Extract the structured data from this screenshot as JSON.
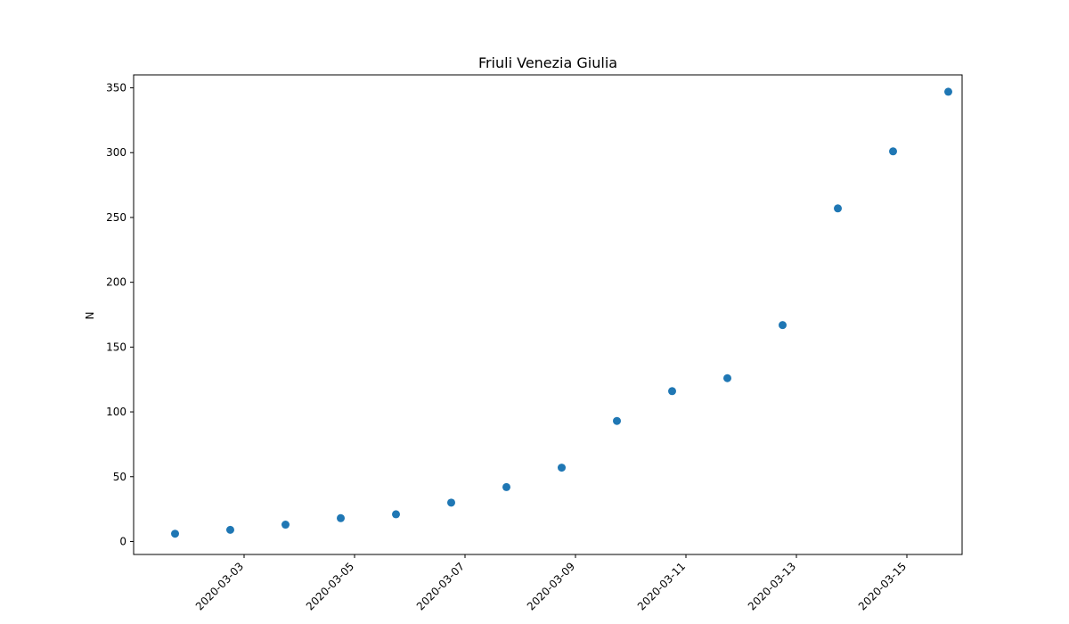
{
  "chart_data": {
    "type": "scatter",
    "title": "Friuli Venezia Giulia",
    "xlabel": "",
    "ylabel": "N",
    "ylim": [
      -10,
      360
    ],
    "xlim": [
      "2020-03-01",
      "2020-03-16"
    ],
    "x_ticks": [
      "2020-03-03",
      "2020-03-05",
      "2020-03-07",
      "2020-03-09",
      "2020-03-11",
      "2020-03-13",
      "2020-03-15"
    ],
    "y_ticks": [
      0,
      50,
      100,
      150,
      200,
      250,
      300,
      350
    ],
    "grid": false,
    "series": [
      {
        "color": "#1f77b4",
        "x": [
          "2020-03-01T18:00",
          "2020-03-02T18:00",
          "2020-03-03T18:00",
          "2020-03-04T18:00",
          "2020-03-05T18:00",
          "2020-03-06T18:00",
          "2020-03-07T18:00",
          "2020-03-08T18:00",
          "2020-03-09T18:00",
          "2020-03-10T18:00",
          "2020-03-11T18:00",
          "2020-03-12T18:00",
          "2020-03-13T18:00",
          "2020-03-14T18:00",
          "2020-03-15T18:00"
        ],
        "y": [
          6,
          9,
          13,
          18,
          21,
          30,
          42,
          57,
          93,
          116,
          126,
          167,
          257,
          301,
          347
        ]
      }
    ]
  }
}
